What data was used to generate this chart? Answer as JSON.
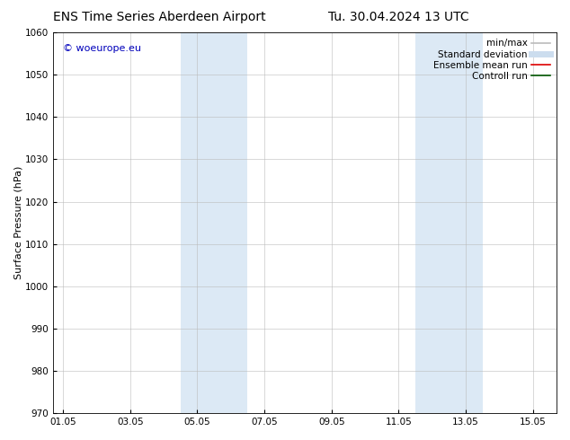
{
  "title_left": "ENS Time Series Aberdeen Airport",
  "title_right": "Tu. 30.04.2024 13 UTC",
  "ylabel": "Surface Pressure (hPa)",
  "ylim": [
    970,
    1060
  ],
  "yticks": [
    970,
    980,
    990,
    1000,
    1010,
    1020,
    1030,
    1040,
    1050,
    1060
  ],
  "xtick_labels": [
    "01.05",
    "03.05",
    "05.05",
    "07.05",
    "09.05",
    "11.05",
    "13.05",
    "15.05"
  ],
  "xtick_positions": [
    0,
    2,
    4,
    6,
    8,
    10,
    12,
    14
  ],
  "xlim": [
    -0.3,
    14.7
  ],
  "shaded_regions": [
    {
      "x_start": 3.5,
      "x_end": 5.5,
      "color": "#dce9f5"
    },
    {
      "x_start": 10.5,
      "x_end": 12.5,
      "color": "#dce9f5"
    }
  ],
  "watermark_text": "© woeurope.eu",
  "watermark_color": "#0000bb",
  "legend_entries": [
    {
      "label": "min/max",
      "color": "#bbbbbb",
      "lw": 1.2,
      "ls": "-"
    },
    {
      "label": "Standard deviation",
      "color": "#ccddee",
      "lw": 5,
      "ls": "-"
    },
    {
      "label": "Ensemble mean run",
      "color": "#dd0000",
      "lw": 1.2,
      "ls": "-"
    },
    {
      "label": "Controll run",
      "color": "#005500",
      "lw": 1.2,
      "ls": "-"
    }
  ],
  "bg_color": "#ffffff",
  "grid_color": "#bbbbbb",
  "title_fontsize": 10,
  "tick_fontsize": 7.5,
  "legend_fontsize": 7.5,
  "ylabel_fontsize": 8,
  "watermark_fontsize": 8
}
